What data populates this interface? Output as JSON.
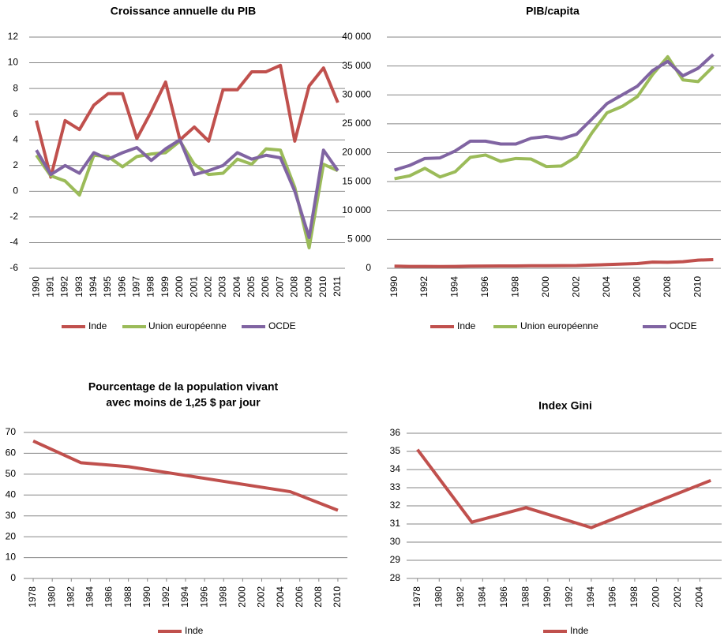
{
  "chart_data": [
    {
      "type": "line",
      "title": "Croissance annuelle du PIB",
      "categories": [
        "1990",
        "1991",
        "1992",
        "1993",
        "1994",
        "1995",
        "1996",
        "1997",
        "1998",
        "1999",
        "2000",
        "2001",
        "2002",
        "2003",
        "2004",
        "2005",
        "2006",
        "2007",
        "2008",
        "2009",
        "2010",
        "2011"
      ],
      "series": [
        {
          "name": "Inde",
          "color": "#c0504d",
          "values": [
            5.5,
            1.1,
            5.5,
            4.8,
            6.7,
            7.6,
            7.6,
            4.1,
            6.2,
            8.5,
            4.0,
            5.0,
            3.9,
            7.9,
            7.9,
            9.3,
            9.3,
            9.8,
            3.9,
            8.2,
            9.6,
            6.9
          ]
        },
        {
          "name": "Union européenne",
          "color": "#9bbb59",
          "values": [
            2.8,
            1.2,
            0.8,
            -0.3,
            2.8,
            2.7,
            1.9,
            2.7,
            2.9,
            3.0,
            3.9,
            2.1,
            1.3,
            1.4,
            2.5,
            2.1,
            3.3,
            3.2,
            0.3,
            -4.4,
            2.1,
            1.6
          ]
        },
        {
          "name": "OCDE",
          "color": "#8064a2",
          "values": [
            3.2,
            1.3,
            2.0,
            1.4,
            3.0,
            2.5,
            3.0,
            3.4,
            2.4,
            3.3,
            4.0,
            1.3,
            1.6,
            2.0,
            3.0,
            2.5,
            2.8,
            2.6,
            0.0,
            -3.6,
            3.2,
            1.6
          ]
        }
      ],
      "ylim": [
        -6,
        12
      ],
      "yticks": [
        -6,
        -4,
        -2,
        0,
        2,
        4,
        6,
        8,
        10,
        12
      ],
      "grid": true,
      "legend": "bottom"
    },
    {
      "type": "line",
      "title": "PIB/capita",
      "categories": [
        "1990",
        null,
        "1992",
        null,
        "1994",
        null,
        "1996",
        null,
        "1998",
        null,
        "2000",
        null,
        "2002",
        null,
        "2004",
        null,
        "2006",
        null,
        "2008",
        null,
        "2010",
        null
      ],
      "series": [
        {
          "name": "Inde",
          "color": "#c0504d",
          "values": [
            370,
            330,
            320,
            300,
            330,
            370,
            400,
            410,
            410,
            440,
            450,
            460,
            480,
            560,
            640,
            730,
            820,
            1070,
            1040,
            1150,
            1420,
            1500
          ]
        },
        {
          "name": "Union européenne",
          "color": "#9bbb59",
          "values": [
            15500,
            16000,
            17300,
            15800,
            16700,
            19200,
            19600,
            18500,
            19000,
            18900,
            17600,
            17700,
            19300,
            23400,
            26900,
            28000,
            29700,
            33500,
            36600,
            32600,
            32300,
            34900
          ]
        },
        {
          "name": "OCDE",
          "color": "#8064a2",
          "values": [
            17000,
            17800,
            19000,
            19100,
            20300,
            22000,
            22000,
            21500,
            21500,
            22500,
            22800,
            22400,
            23200,
            25800,
            28500,
            30000,
            31500,
            34200,
            35800,
            33300,
            34600,
            37000
          ]
        }
      ],
      "ylim": [
        0,
        40000
      ],
      "yticks": [
        0,
        {
          "value": 5000,
          "label": "5 000"
        },
        {
          "value": 10000,
          "label": "10 000"
        },
        {
          "value": 15000,
          "label": "15 000"
        },
        {
          "value": 20000,
          "label": "20 000"
        },
        {
          "value": 25000,
          "label": "25 000"
        },
        {
          "value": 30000,
          "label": "30 000"
        },
        {
          "value": 35000,
          "label": "35 000"
        },
        {
          "value": 40000,
          "label": "40 000"
        }
      ],
      "grid": true,
      "legend": "bottom"
    },
    {
      "type": "line",
      "title": [
        "Pourcentage de la population vivant",
        "avec moins de 1,25 $ par jour"
      ],
      "x": [
        1978,
        1983,
        1988,
        1994,
        2005,
        2010
      ],
      "series": [
        {
          "name": "Inde",
          "color": "#c0504d",
          "values": [
            65.9,
            55.5,
            53.6,
            49.4,
            41.6,
            32.7
          ]
        }
      ],
      "xlim": [
        1977,
        2011
      ],
      "xticks": [
        1978,
        1980,
        1982,
        1984,
        1986,
        1988,
        1990,
        1992,
        1994,
        1996,
        1998,
        2000,
        2002,
        2004,
        2006,
        2008,
        2010
      ],
      "ylim": [
        0,
        70
      ],
      "yticks": [
        0,
        10,
        20,
        30,
        40,
        50,
        60,
        70
      ],
      "grid": true,
      "legend": "bottom"
    },
    {
      "type": "line",
      "title": "Index Gini",
      "x": [
        1978,
        1983,
        1988,
        1994,
        2005
      ],
      "series": [
        {
          "name": "Inde",
          "color": "#c0504d",
          "values": [
            35.1,
            31.1,
            31.9,
            30.8,
            33.4
          ]
        }
      ],
      "xlim": [
        1977,
        2006
      ],
      "xticks": [
        1978,
        1980,
        1982,
        1984,
        1986,
        1988,
        1990,
        1992,
        1994,
        1996,
        1998,
        2000,
        2002,
        2004
      ],
      "ylim": [
        28,
        36
      ],
      "yticks": [
        28,
        29,
        30,
        31,
        32,
        33,
        34,
        35,
        36
      ],
      "grid": true,
      "legend": "bottom"
    }
  ]
}
